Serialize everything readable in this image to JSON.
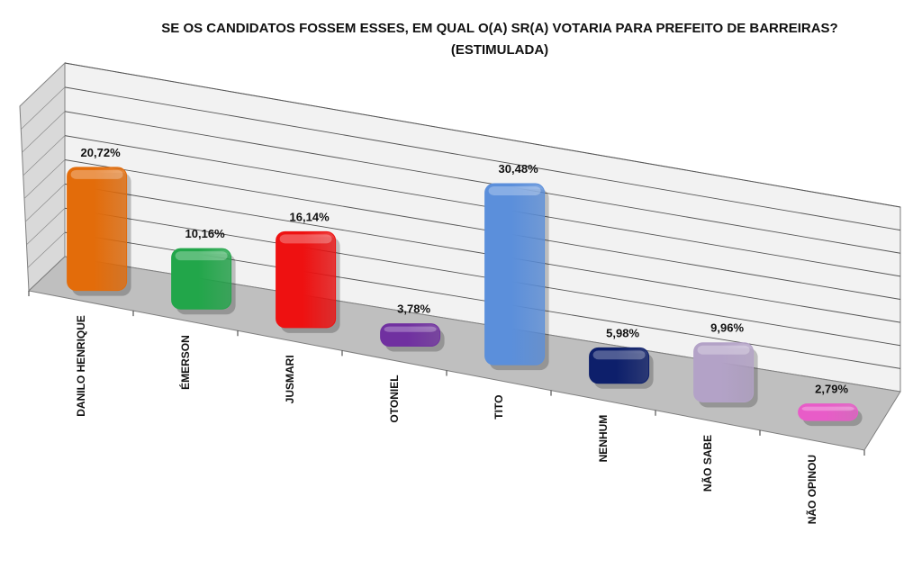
{
  "chart_data": {
    "type": "bar",
    "title": "SE OS CANDIDATOS FOSSEM ESSES, EM QUAL O(A) SR(A) VOTARIA PARA PREFEITO DE BARREIRAS?",
    "subtitle": "(ESTIMULADA)",
    "categories": [
      "DANILO HENRIQUE",
      "ÉMERSON",
      "JUSMARI",
      "OTONIEL",
      "TITO",
      "NENHUM",
      "NÃO SABE",
      "NÃO OPINOU"
    ],
    "values": [
      20.72,
      10.16,
      16.14,
      3.78,
      30.48,
      5.98,
      9.96,
      2.79
    ],
    "value_labels": [
      "20,72%",
      "10,16%",
      "16,14%",
      "3,78%",
      "30,48%",
      "5,98%",
      "9,96%",
      "2,79%"
    ],
    "unit": "%",
    "ylim": [
      0,
      40
    ],
    "grid": true,
    "legend": "none",
    "style": "3d-perspective",
    "colors": [
      "#E36C0A",
      "#22A64A",
      "#EE1111",
      "#7030A0",
      "#5B8FDB",
      "#0D1F6B",
      "#B3A2C7",
      "#E85CC8"
    ],
    "floor_color": "#BFBFBF",
    "wall_color": "#F2F2F2",
    "grid_color": "#555555"
  }
}
